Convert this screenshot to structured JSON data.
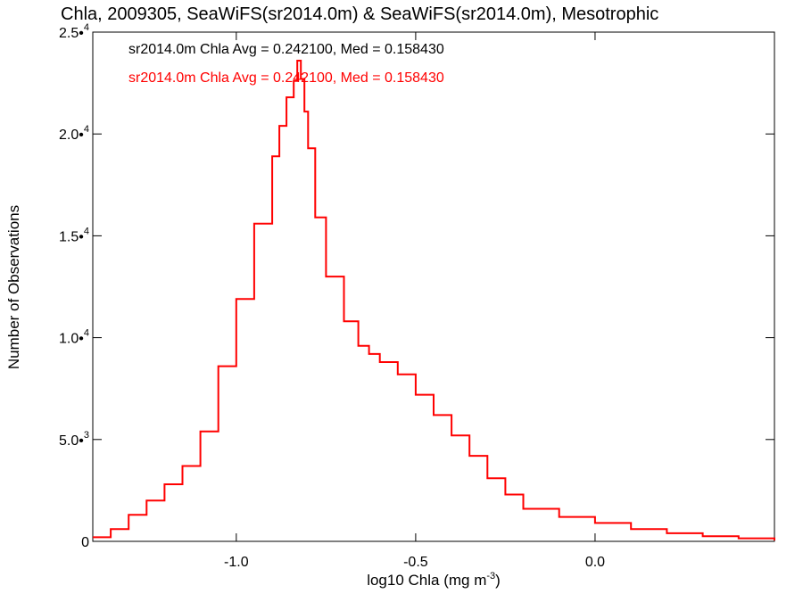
{
  "chart_data": {
    "type": "line",
    "title": "Chla, 2009305, SeaWiFS(sr2014.0m) & SeaWiFS(sr2014.0m), Mesotrophic",
    "xlabel": "log10 Chla (mg m",
    "xlabel_sup": "-3",
    "xlabel_suffix": ")",
    "ylabel": "Number of Observations",
    "xlim": [
      -1.4,
      0.5
    ],
    "ylim": [
      0,
      25000
    ],
    "grid": false,
    "x_ticks": [
      {
        "value": -1.0,
        "label": "-1.0"
      },
      {
        "value": -0.5,
        "label": "-0.5"
      },
      {
        "value": 0.0,
        "label": "0.0"
      }
    ],
    "y_ticks": [
      {
        "value": 0,
        "mantissa": "0",
        "exp": ""
      },
      {
        "value": 5000,
        "mantissa": "5.0•",
        "exp": "3"
      },
      {
        "value": 10000,
        "mantissa": "1.0•",
        "exp": "4"
      },
      {
        "value": 15000,
        "mantissa": "1.5•",
        "exp": "4"
      },
      {
        "value": 20000,
        "mantissa": "2.0•",
        "exp": "4"
      },
      {
        "value": 25000,
        "mantissa": "2.5•",
        "exp": "4"
      }
    ],
    "annotations": [
      {
        "text": "sr2014.0m Chla Avg = 0.242100, Med = 0.158430",
        "color": "#000000"
      },
      {
        "text": "sr2014.0m Chla Avg = 0.242100, Med = 0.158430",
        "color": "#ff0000"
      }
    ],
    "series": [
      {
        "color": "#ff0000",
        "step": true,
        "x": [
          -1.4,
          -1.35,
          -1.3,
          -1.25,
          -1.2,
          -1.15,
          -1.1,
          -1.05,
          -1.0,
          -0.95,
          -0.9,
          -0.88,
          -0.86,
          -0.84,
          -0.83,
          -0.82,
          -0.81,
          -0.8,
          -0.78,
          -0.75,
          -0.7,
          -0.66,
          -0.63,
          -0.6,
          -0.55,
          -0.5,
          -0.45,
          -0.4,
          -0.35,
          -0.3,
          -0.25,
          -0.2,
          -0.1,
          0.0,
          0.1,
          0.2,
          0.3,
          0.4,
          0.5
        ],
        "y": [
          200,
          600,
          1300,
          2000,
          2800,
          3700,
          5400,
          8600,
          11900,
          15600,
          18900,
          20400,
          21800,
          22600,
          23600,
          22700,
          21100,
          19300,
          15900,
          13000,
          10800,
          9600,
          9200,
          8800,
          8200,
          7200,
          6200,
          5200,
          4200,
          3100,
          2300,
          1600,
          1200,
          900,
          600,
          400,
          250,
          150,
          50
        ]
      }
    ]
  }
}
